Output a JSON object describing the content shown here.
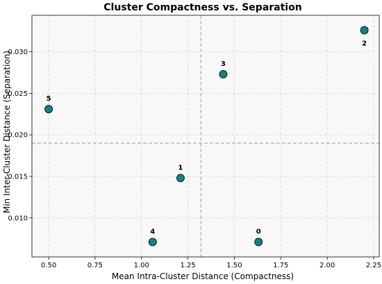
{
  "chart_data": {
    "type": "scatter",
    "title": "Cluster Compactness vs. Separation",
    "xlabel": "Mean Intra-Cluster Distance (Compactness)",
    "ylabel": "Min Inter-Cluster Distance (Separation)",
    "xlim": [
      0.41,
      2.28
    ],
    "ylim": [
      0.0053,
      0.0344
    ],
    "xticks": [
      0.5,
      0.75,
      1.0,
      1.25,
      1.5,
      1.75,
      2.0,
      2.25
    ],
    "xtick_labels": [
      "0.50",
      "0.75",
      "1.00",
      "1.25",
      "1.50",
      "1.75",
      "2.00",
      "2.25"
    ],
    "yticks": [
      0.01,
      0.015,
      0.02,
      0.025,
      0.03
    ],
    "ytick_labels": [
      "0.010",
      "0.015",
      "0.020",
      "0.025",
      "0.030"
    ],
    "grid": true,
    "reference_lines": {
      "x": 1.32,
      "y": 0.019
    },
    "points": [
      {
        "label": "0",
        "x": 1.63,
        "y": 0.0071
      },
      {
        "label": "1",
        "x": 1.21,
        "y": 0.0148
      },
      {
        "label": "2",
        "x": 2.2,
        "y": 0.0326
      },
      {
        "label": "3",
        "x": 1.44,
        "y": 0.0273
      },
      {
        "label": "4",
        "x": 1.06,
        "y": 0.0071
      },
      {
        "label": "5",
        "x": 0.5,
        "y": 0.0231
      }
    ],
    "marker_color": "#138280",
    "marker_edge": "#1a1a1a",
    "background": "#f8f8f8"
  }
}
